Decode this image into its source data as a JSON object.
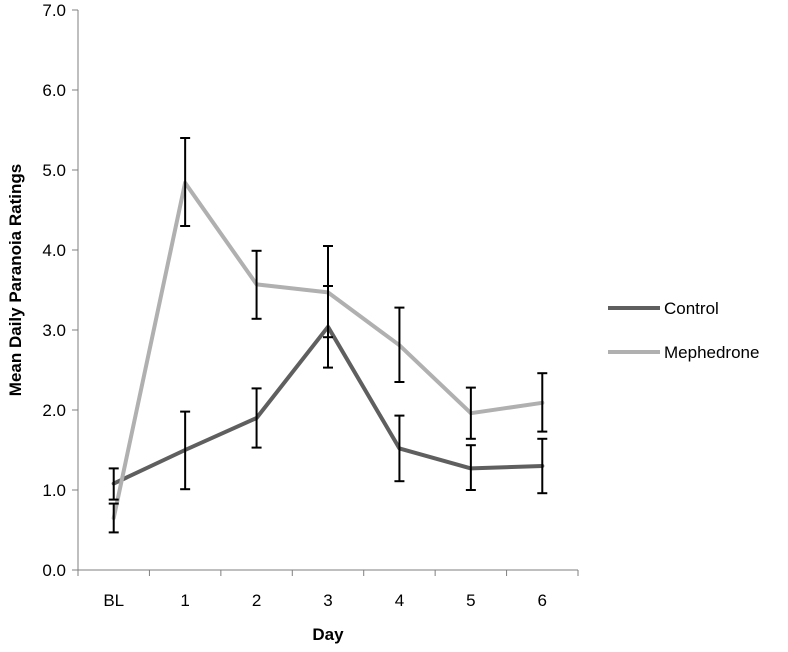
{
  "chart_data": {
    "type": "line",
    "xlabel": "Day",
    "ylabel": "Mean Daily Paranoia Ratings",
    "categories": [
      "BL",
      "1",
      "2",
      "3",
      "4",
      "5",
      "6"
    ],
    "ylim": [
      0,
      7
    ],
    "yticks": [
      "0.0",
      "1.0",
      "2.0",
      "3.0",
      "4.0",
      "5.0",
      "6.0",
      "7.0"
    ],
    "grid": false,
    "legend_position": "right",
    "series": [
      {
        "name": "Control",
        "color": "#5f5f5f",
        "values": [
          1.08,
          1.5,
          1.9,
          3.04,
          1.52,
          1.27,
          1.3
        ],
        "error_low": [
          0.88,
          1.01,
          1.53,
          2.53,
          1.11,
          1.0,
          0.96
        ],
        "error_high": [
          1.27,
          1.98,
          2.27,
          3.55,
          1.93,
          1.56,
          1.64
        ]
      },
      {
        "name": "Mephedrone",
        "color": "#b0b0b0",
        "values": [
          0.65,
          4.84,
          3.57,
          3.47,
          2.81,
          1.96,
          2.09
        ],
        "error_low": [
          0.47,
          4.3,
          3.14,
          2.91,
          2.35,
          1.64,
          1.73
        ],
        "error_high": [
          0.83,
          5.4,
          3.99,
          4.05,
          3.28,
          2.28,
          2.46
        ]
      }
    ]
  }
}
